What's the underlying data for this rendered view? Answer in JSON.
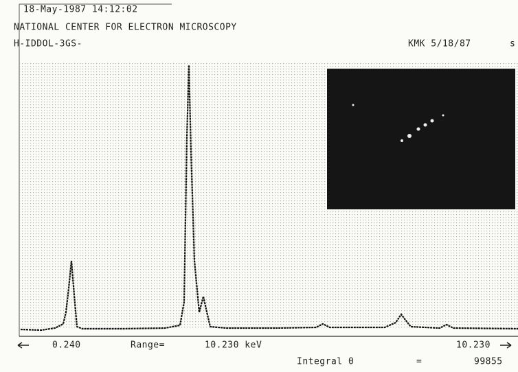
{
  "header": {
    "timestamp": "18-May-1987 14:12:02",
    "institution": "NATIONAL CENTER FOR ELECTRON MICROSCOPY",
    "sample": "H-IDDOL-3GS-",
    "operator": "KMK 5/18/87",
    "cut_text": "s"
  },
  "footer": {
    "start": "0.240",
    "range_label": "Range=",
    "range_value": "10.230 keV",
    "end": "10.230",
    "integral_label": "Integral 0",
    "equals": "=",
    "integral_value": "99855"
  }
}
